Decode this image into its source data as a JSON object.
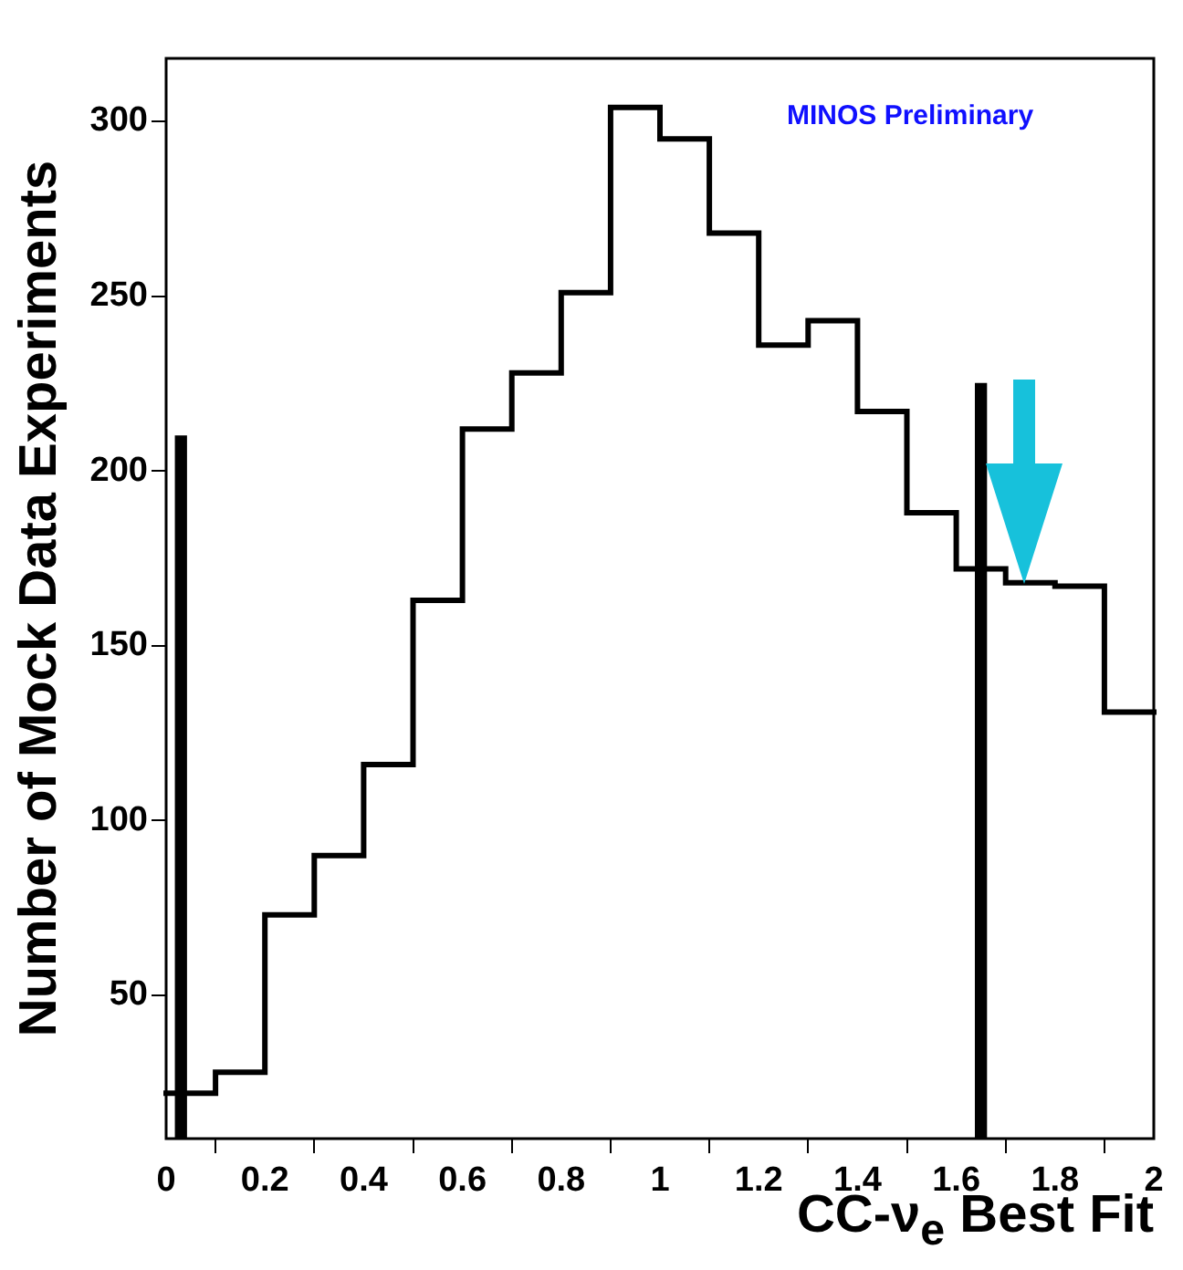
{
  "chart_data": {
    "type": "histogram",
    "xlabel": "CC-ν$_{e}$ Best Fit",
    "ylabel": "Number of Mock Data Experiments",
    "annotations": [
      "MINOS Preliminary"
    ],
    "bins": [
      0,
      0.1,
      0.2,
      0.3,
      0.4,
      0.5,
      0.6,
      0.7,
      0.8,
      0.9,
      1.0,
      1.1,
      1.2,
      1.3,
      1.4,
      1.5,
      1.6,
      1.7,
      1.8,
      1.9,
      2.0
    ],
    "values": [
      22,
      28,
      73,
      90,
      116,
      163,
      212,
      228,
      251,
      304,
      295,
      268,
      236,
      243,
      217,
      188,
      172,
      168,
      167,
      131
    ],
    "color": "#000000",
    "series": [
      {
        "type": "bar",
        "color": "#000000",
        "x": [
          0.03,
          1.65
        ],
        "values": [
          210,
          225
        ]
      }
    ],
    "xlim": [
      0,
      2
    ],
    "xticks": [
      0,
      0.2,
      0.4,
      0.6,
      0.8,
      1,
      1.2,
      1.4,
      1.6,
      1.8,
      2
    ],
    "ylim": [
      9,
      318
    ],
    "yticks": [
      50,
      100,
      150,
      200,
      250,
      300
    ],
    "grid": false,
    "legend": false
  }
}
